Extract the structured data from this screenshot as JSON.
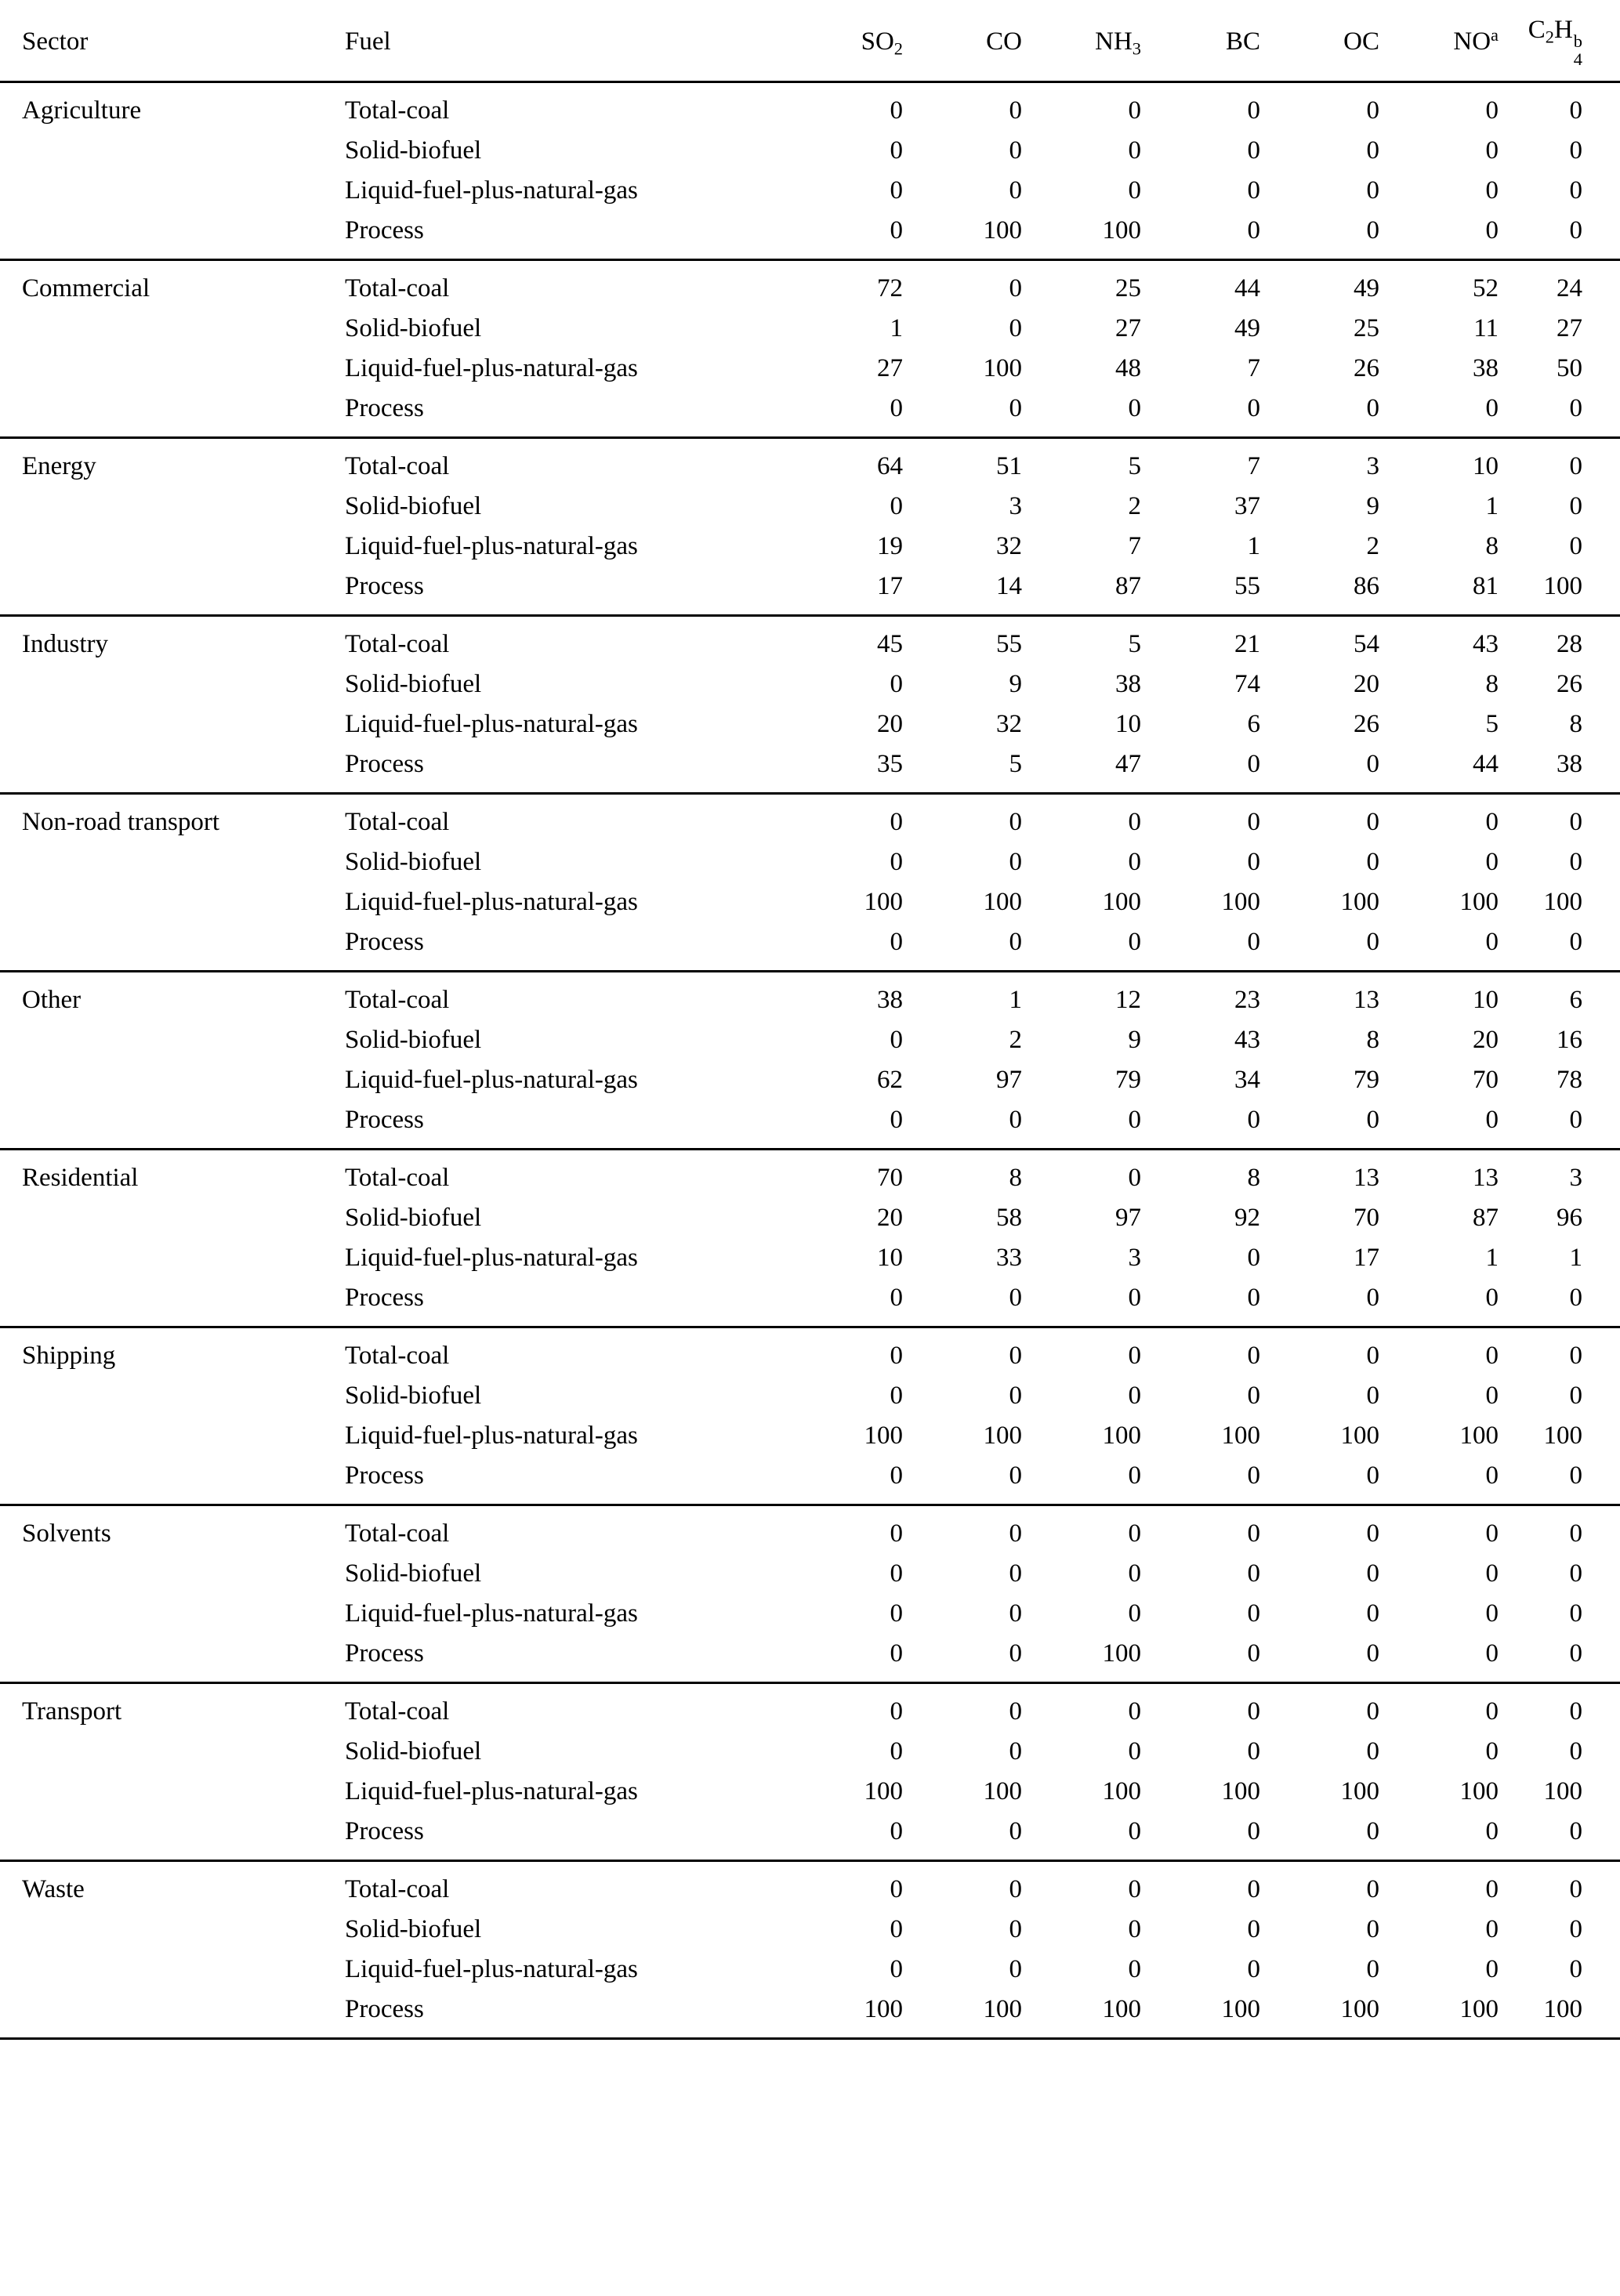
{
  "page": {
    "background": "#ffffff",
    "text_color": "#000000"
  },
  "chart_data": {
    "type": "table",
    "columns": [
      {
        "name": "sector",
        "align": "sector",
        "segments": [
          {
            "t": "Sector"
          }
        ]
      },
      {
        "name": "fuel",
        "align": "fuel",
        "segments": [
          {
            "t": "Fuel"
          }
        ]
      },
      {
        "name": "so2",
        "align": "num",
        "segments": [
          {
            "t": "SO"
          },
          {
            "t": "2",
            "m": "sub"
          }
        ]
      },
      {
        "name": "co",
        "align": "num",
        "segments": [
          {
            "t": "CO"
          }
        ]
      },
      {
        "name": "nh3",
        "align": "num",
        "segments": [
          {
            "t": "NH"
          },
          {
            "t": "3",
            "m": "sub"
          }
        ]
      },
      {
        "name": "bc",
        "align": "num",
        "segments": [
          {
            "t": "BC"
          }
        ]
      },
      {
        "name": "oc",
        "align": "num",
        "segments": [
          {
            "t": "OC"
          }
        ]
      },
      {
        "name": "no",
        "align": "num",
        "segments": [
          {
            "t": "NO"
          },
          {
            "t": "a",
            "m": "sup"
          }
        ]
      },
      {
        "name": "c2h4",
        "align": "num",
        "segments": [
          {
            "t": "C"
          },
          {
            "t": "2",
            "m": "sub"
          },
          {
            "t": "H"
          },
          {
            "stack": {
              "sub": "4",
              "sup": "b"
            }
          }
        ]
      }
    ],
    "fuels": [
      "Total-coal",
      "Solid-biofuel",
      "Liquid-fuel-plus-natural-gas",
      "Process"
    ],
    "sectors": [
      {
        "sector": "Agriculture",
        "rows": [
          [
            0,
            0,
            0,
            0,
            0,
            0,
            0
          ],
          [
            0,
            0,
            0,
            0,
            0,
            0,
            0
          ],
          [
            0,
            0,
            0,
            0,
            0,
            0,
            0
          ],
          [
            0,
            100,
            100,
            0,
            0,
            0,
            0
          ]
        ]
      },
      {
        "sector": "Commercial",
        "rows": [
          [
            72,
            0,
            25,
            44,
            49,
            52,
            24
          ],
          [
            1,
            0,
            27,
            49,
            25,
            11,
            27
          ],
          [
            27,
            100,
            48,
            7,
            26,
            38,
            50
          ],
          [
            0,
            0,
            0,
            0,
            0,
            0,
            0
          ]
        ]
      },
      {
        "sector": "Energy",
        "rows": [
          [
            64,
            51,
            5,
            7,
            3,
            10,
            0
          ],
          [
            0,
            3,
            2,
            37,
            9,
            1,
            0
          ],
          [
            19,
            32,
            7,
            1,
            2,
            8,
            0
          ],
          [
            17,
            14,
            87,
            55,
            86,
            81,
            100
          ]
        ]
      },
      {
        "sector": "Industry",
        "rows": [
          [
            45,
            55,
            5,
            21,
            54,
            43,
            28
          ],
          [
            0,
            9,
            38,
            74,
            20,
            8,
            26
          ],
          [
            20,
            32,
            10,
            6,
            26,
            5,
            8
          ],
          [
            35,
            5,
            47,
            0,
            0,
            44,
            38
          ]
        ]
      },
      {
        "sector": "Non-road transport",
        "rows": [
          [
            0,
            0,
            0,
            0,
            0,
            0,
            0
          ],
          [
            0,
            0,
            0,
            0,
            0,
            0,
            0
          ],
          [
            100,
            100,
            100,
            100,
            100,
            100,
            100
          ],
          [
            0,
            0,
            0,
            0,
            0,
            0,
            0
          ]
        ]
      },
      {
        "sector": "Other",
        "rows": [
          [
            38,
            1,
            12,
            23,
            13,
            10,
            6
          ],
          [
            0,
            2,
            9,
            43,
            8,
            20,
            16
          ],
          [
            62,
            97,
            79,
            34,
            79,
            70,
            78
          ],
          [
            0,
            0,
            0,
            0,
            0,
            0,
            0
          ]
        ]
      },
      {
        "sector": "Residential",
        "rows": [
          [
            70,
            8,
            0,
            8,
            13,
            13,
            3
          ],
          [
            20,
            58,
            97,
            92,
            70,
            87,
            96
          ],
          [
            10,
            33,
            3,
            0,
            17,
            1,
            1
          ],
          [
            0,
            0,
            0,
            0,
            0,
            0,
            0
          ]
        ]
      },
      {
        "sector": "Shipping",
        "rows": [
          [
            0,
            0,
            0,
            0,
            0,
            0,
            0
          ],
          [
            0,
            0,
            0,
            0,
            0,
            0,
            0
          ],
          [
            100,
            100,
            100,
            100,
            100,
            100,
            100
          ],
          [
            0,
            0,
            0,
            0,
            0,
            0,
            0
          ]
        ]
      },
      {
        "sector": "Solvents",
        "rows": [
          [
            0,
            0,
            0,
            0,
            0,
            0,
            0
          ],
          [
            0,
            0,
            0,
            0,
            0,
            0,
            0
          ],
          [
            0,
            0,
            0,
            0,
            0,
            0,
            0
          ],
          [
            0,
            0,
            100,
            0,
            0,
            0,
            0
          ]
        ]
      },
      {
        "sector": "Transport",
        "rows": [
          [
            0,
            0,
            0,
            0,
            0,
            0,
            0
          ],
          [
            0,
            0,
            0,
            0,
            0,
            0,
            0
          ],
          [
            100,
            100,
            100,
            100,
            100,
            100,
            100
          ],
          [
            0,
            0,
            0,
            0,
            0,
            0,
            0
          ]
        ]
      },
      {
        "sector": "Waste",
        "rows": [
          [
            0,
            0,
            0,
            0,
            0,
            0,
            0
          ],
          [
            0,
            0,
            0,
            0,
            0,
            0,
            0
          ],
          [
            0,
            0,
            0,
            0,
            0,
            0,
            0
          ],
          [
            100,
            100,
            100,
            100,
            100,
            100,
            100
          ]
        ]
      }
    ]
  }
}
